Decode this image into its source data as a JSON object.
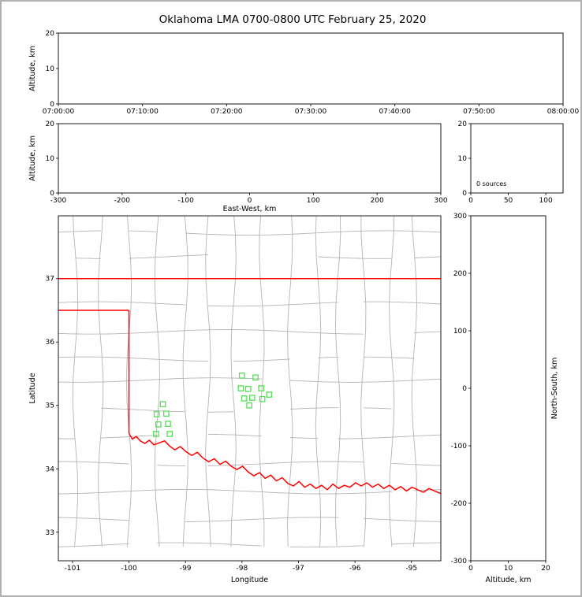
{
  "figure": {
    "title": "Oklahoma LMA 0700-0800 UTC February 25, 2020"
  },
  "colors": {
    "county_line": "#b5b5b5",
    "state_boundary": "#ff0000",
    "station_marker": "#55e055",
    "axis": "#000000",
    "background": "#ffffff"
  },
  "chart_data": [
    {
      "id": "alt_vs_time",
      "type": "scatter",
      "xlabel": "",
      "ylabel": "Altitude, km",
      "xticks": [
        "07:00:00",
        "07:10:00",
        "07:20:00",
        "07:30:00",
        "07:40:00",
        "07:50:00",
        "08:00:00"
      ],
      "ylim": [
        0,
        20
      ],
      "yticks": [
        0,
        10,
        20
      ],
      "points": []
    },
    {
      "id": "alt_vs_ew",
      "type": "scatter",
      "xlabel": "East-West, km",
      "ylabel": "Altitude, km",
      "xlim": [
        -300,
        300
      ],
      "xticks": [
        -300,
        -200,
        -100,
        0,
        100,
        200,
        300
      ],
      "ylim": [
        0,
        20
      ],
      "yticks": [
        0,
        10,
        20
      ],
      "points": []
    },
    {
      "id": "alt_histogram",
      "type": "line",
      "annotation": "0 sources",
      "xlim": [
        0,
        123
      ],
      "xticks": [
        0,
        50,
        100
      ],
      "ylim": [
        0,
        20
      ],
      "yticks": [
        0,
        10,
        20
      ],
      "points": []
    },
    {
      "id": "map",
      "type": "scatter",
      "xlabel": "Longitude",
      "ylabel": "Latitude",
      "xlim": [
        -101.25,
        -94.48
      ],
      "xticks": [
        -101,
        -100,
        -99,
        -98,
        -97,
        -96,
        -95
      ],
      "ylim": [
        32.55,
        37.99
      ],
      "yticks": [
        33,
        34,
        35,
        36,
        37
      ],
      "stations": [
        [
          -98.0,
          35.47
        ],
        [
          -97.76,
          35.44
        ],
        [
          -98.02,
          35.27
        ],
        [
          -97.89,
          35.26
        ],
        [
          -97.66,
          35.27
        ],
        [
          -97.52,
          35.17
        ],
        [
          -97.96,
          35.11
        ],
        [
          -97.82,
          35.12
        ],
        [
          -97.64,
          35.1
        ],
        [
          -97.87,
          35.0
        ],
        [
          -99.4,
          35.02
        ],
        [
          -99.51,
          34.86
        ],
        [
          -99.34,
          34.87
        ],
        [
          -99.48,
          34.7
        ],
        [
          -99.31,
          34.71
        ],
        [
          -99.52,
          34.55
        ],
        [
          -99.28,
          34.55
        ]
      ],
      "state_boundary": {
        "north_border_lat": 37.0,
        "panhandle_south_lat": 36.5,
        "west_border_lon": -100.0,
        "red_river": [
          [
            -100.0,
            34.56
          ],
          [
            -99.94,
            34.47
          ],
          [
            -99.87,
            34.51
          ],
          [
            -99.8,
            34.44
          ],
          [
            -99.72,
            34.4
          ],
          [
            -99.64,
            34.45
          ],
          [
            -99.56,
            34.38
          ],
          [
            -99.46,
            34.41
          ],
          [
            -99.37,
            34.44
          ],
          [
            -99.28,
            34.36
          ],
          [
            -99.19,
            34.3
          ],
          [
            -99.09,
            34.35
          ],
          [
            -98.99,
            34.27
          ],
          [
            -98.89,
            34.21
          ],
          [
            -98.79,
            34.26
          ],
          [
            -98.69,
            34.17
          ],
          [
            -98.59,
            34.11
          ],
          [
            -98.49,
            34.16
          ],
          [
            -98.39,
            34.07
          ],
          [
            -98.29,
            34.12
          ],
          [
            -98.19,
            34.04
          ],
          [
            -98.09,
            33.99
          ],
          [
            -97.99,
            34.04
          ],
          [
            -97.89,
            33.95
          ],
          [
            -97.79,
            33.89
          ],
          [
            -97.69,
            33.94
          ],
          [
            -97.59,
            33.85
          ],
          [
            -97.49,
            33.9
          ],
          [
            -97.39,
            33.81
          ],
          [
            -97.29,
            33.86
          ],
          [
            -97.19,
            33.77
          ],
          [
            -97.09,
            33.73
          ],
          [
            -96.99,
            33.8
          ],
          [
            -96.89,
            33.71
          ],
          [
            -96.79,
            33.76
          ],
          [
            -96.69,
            33.69
          ],
          [
            -96.59,
            33.74
          ],
          [
            -96.49,
            33.67
          ],
          [
            -96.39,
            33.76
          ],
          [
            -96.29,
            33.69
          ],
          [
            -96.19,
            33.74
          ],
          [
            -96.09,
            33.71
          ],
          [
            -95.99,
            33.78
          ],
          [
            -95.89,
            33.73
          ],
          [
            -95.79,
            33.78
          ],
          [
            -95.69,
            33.71
          ],
          [
            -95.59,
            33.76
          ],
          [
            -95.49,
            33.69
          ],
          [
            -95.39,
            33.74
          ],
          [
            -95.29,
            33.67
          ],
          [
            -95.19,
            33.72
          ],
          [
            -95.09,
            33.65
          ],
          [
            -94.99,
            33.71
          ],
          [
            -94.89,
            33.67
          ],
          [
            -94.79,
            33.63
          ],
          [
            -94.69,
            33.69
          ],
          [
            -94.59,
            33.65
          ],
          [
            -94.48,
            33.61
          ]
        ]
      },
      "county_grid": {
        "lons": [
          -100.95,
          -100.5,
          -100.0,
          -99.5,
          -99.0,
          -98.6,
          -98.15,
          -97.65,
          -97.15,
          -96.65,
          -96.3,
          -95.85,
          -95.35,
          -94.95
        ],
        "lats": [
          37.72,
          37.35,
          36.6,
          36.16,
          35.73,
          35.4,
          34.93,
          34.51,
          34.08,
          33.64,
          33.2,
          32.8
        ]
      }
    },
    {
      "id": "ns_vs_alt",
      "type": "scatter",
      "xlabel": "Altitude, km",
      "ylabel": "North-South, km",
      "xlim": [
        0,
        20
      ],
      "xticks": [
        0,
        10,
        20
      ],
      "ylim": [
        -300,
        300
      ],
      "yticks": [
        300,
        200,
        100,
        0,
        -100,
        -200,
        -300
      ],
      "points": []
    }
  ]
}
